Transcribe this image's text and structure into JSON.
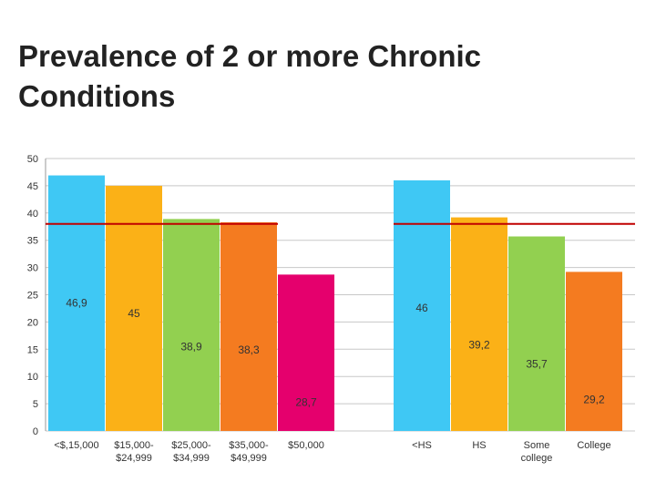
{
  "title": "Prevalence of 2 or more Chronic Conditions",
  "chart_data": {
    "type": "bar",
    "title": "Prevalence of 2 or more Chronic Conditions",
    "ylim": [
      0,
      50
    ],
    "yticks": [
      0,
      5,
      10,
      15,
      20,
      25,
      30,
      35,
      40,
      45,
      50
    ],
    "grid": true,
    "reference_line": 38,
    "reference_line_color": "#c00000",
    "groups": [
      {
        "categories": [
          "<$,15,000",
          "$15,000-\n$24,999",
          "$25,000-\n$34,999",
          "$35,000-\n$49,999",
          "$50,000"
        ],
        "values": [
          46.9,
          45,
          38.9,
          38.3,
          28.7
        ],
        "labels": [
          "46,9",
          "45",
          "38,9",
          "38,3",
          "28,7"
        ],
        "colors": [
          "#3fc8f4",
          "#fbb117",
          "#92d050",
          "#f47b20",
          "#e5006d"
        ]
      },
      {
        "categories": [
          "<HS",
          "HS",
          "Some\ncollege",
          "College"
        ],
        "values": [
          46,
          39.2,
          35.7,
          29.2
        ],
        "labels": [
          "46",
          "39,2",
          "35,7",
          "29,2"
        ],
        "colors": [
          "#3fc8f4",
          "#fbb117",
          "#92d050",
          "#f47b20"
        ]
      }
    ]
  }
}
